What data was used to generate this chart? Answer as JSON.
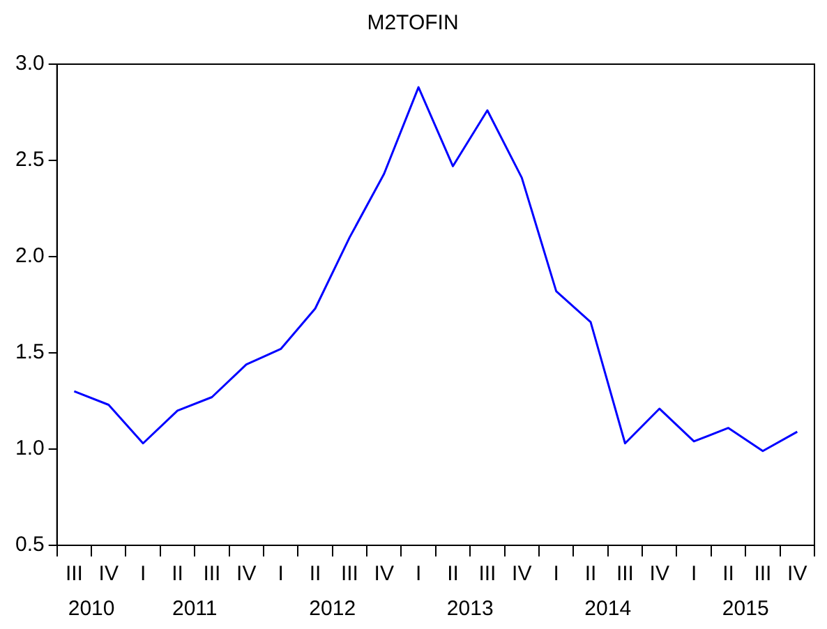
{
  "chart_data": {
    "type": "line",
    "title": "M2TOFIN",
    "categories": [
      "III",
      "IV",
      "I",
      "II",
      "III",
      "IV",
      "I",
      "II",
      "III",
      "IV",
      "I",
      "II",
      "III",
      "IV",
      "I",
      "II",
      "III",
      "IV",
      "I",
      "II",
      "III",
      "IV"
    ],
    "series": [
      {
        "color": "#0000ff",
        "values": [
          1.3,
          1.23,
          1.03,
          1.2,
          1.27,
          1.44,
          1.52,
          1.73,
          2.1,
          2.43,
          2.88,
          2.47,
          2.76,
          2.41,
          1.82,
          1.66,
          1.03,
          1.21,
          1.04,
          1.11,
          0.99,
          1.09
        ]
      }
    ],
    "ylim": [
      0.5,
      3.0
    ],
    "yticks": [
      {
        "value": 0.5,
        "label": "0.5"
      },
      {
        "value": 1.0,
        "label": "1.0"
      },
      {
        "value": 1.5,
        "label": "1.5"
      },
      {
        "value": 2.0,
        "label": "2.0"
      },
      {
        "value": 2.5,
        "label": "2.5"
      },
      {
        "value": 3.0,
        "label": "3.0"
      }
    ],
    "annotations": [
      "2010",
      "2011",
      "2012",
      "2013",
      "2014",
      "2015"
    ],
    "grid": false,
    "legend": false,
    "marker": "none",
    "line_style": "solid"
  }
}
